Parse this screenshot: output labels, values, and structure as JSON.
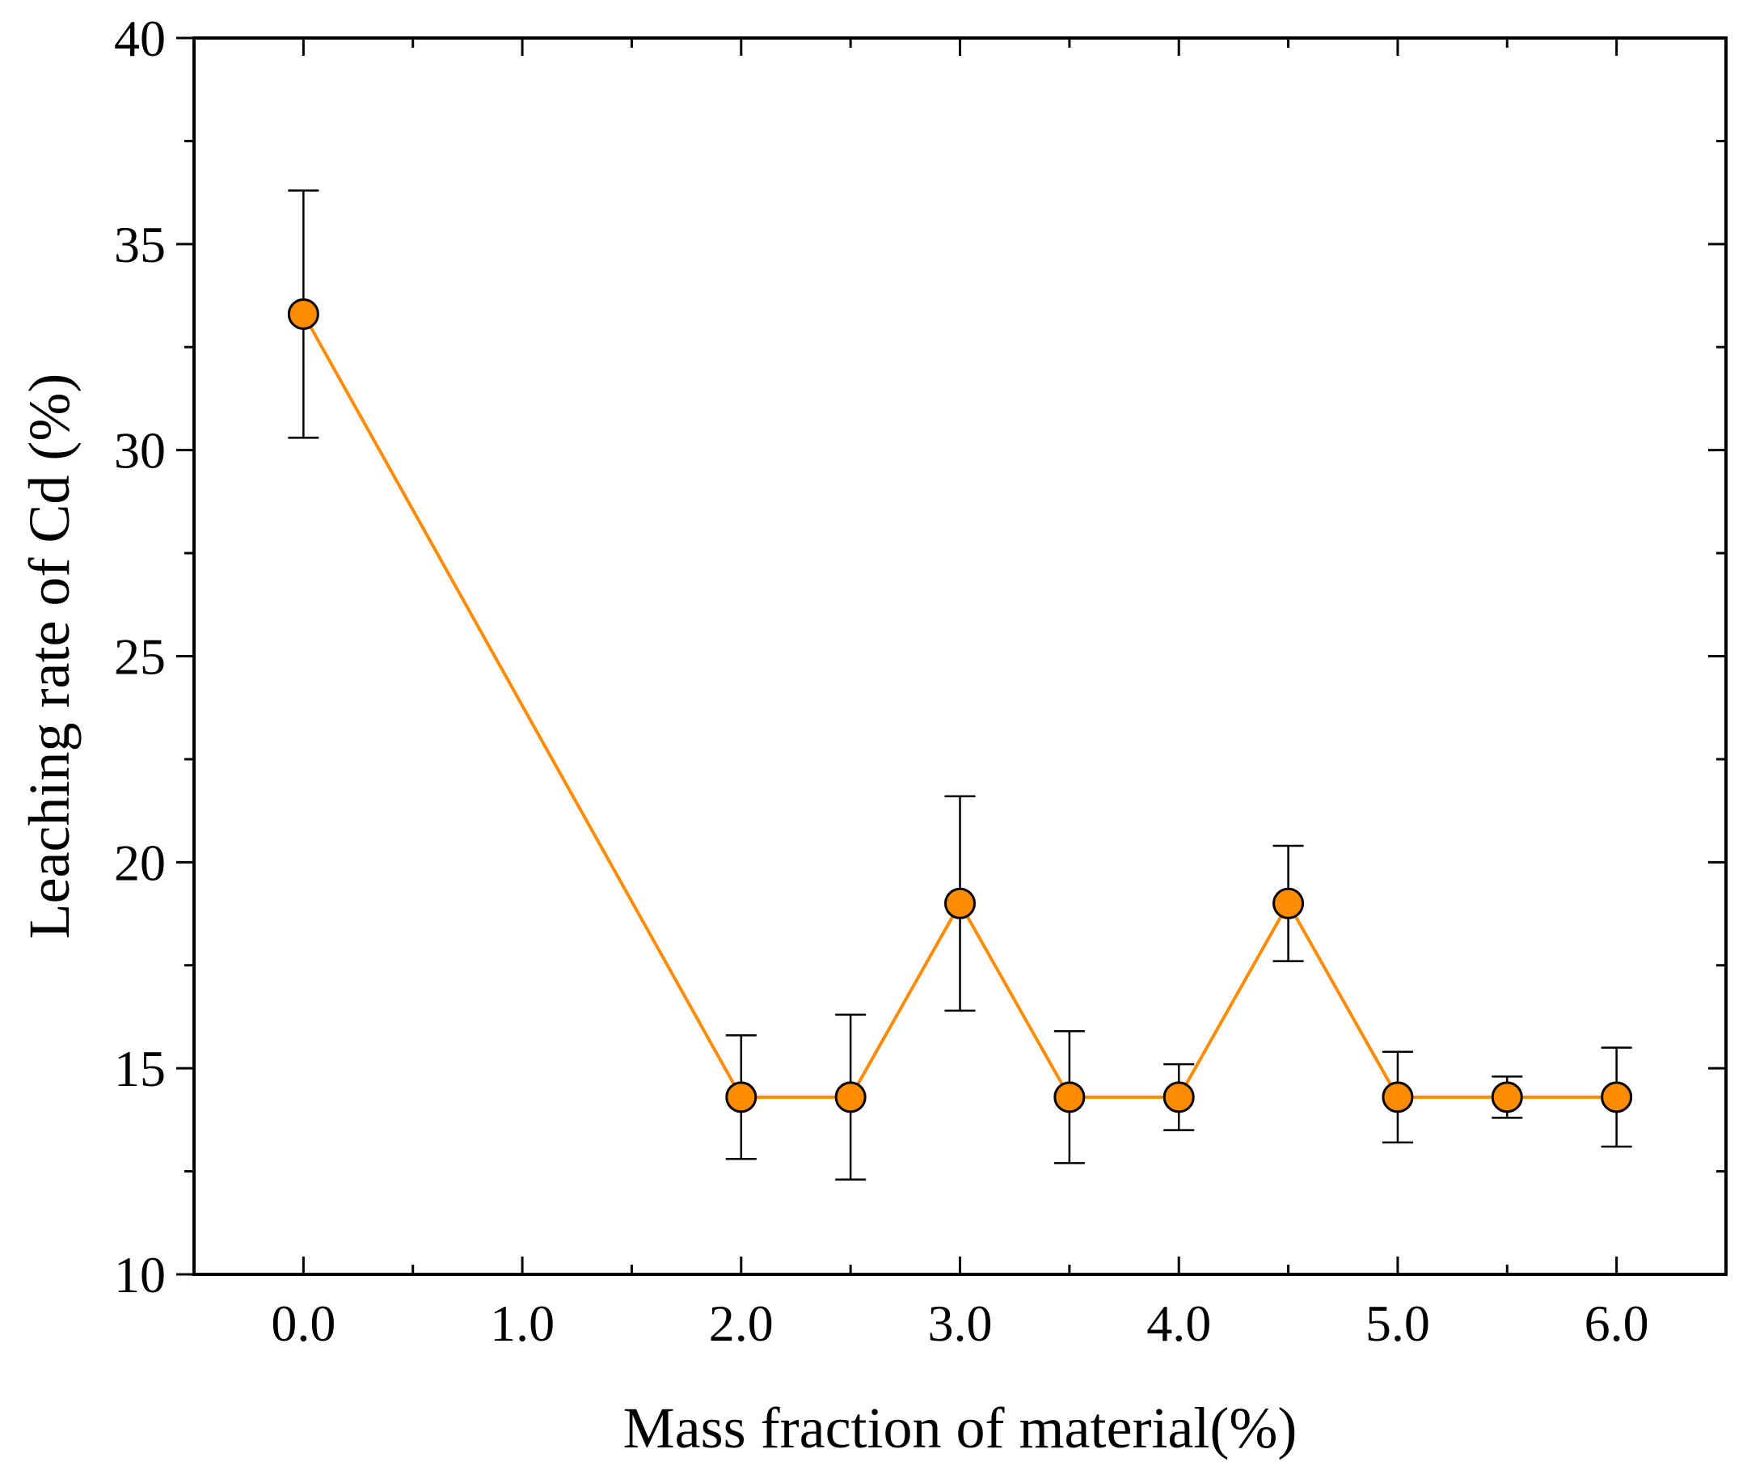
{
  "chart_data": {
    "type": "line",
    "xlabel": "Mass fraction of material(%)",
    "ylabel": "Leaching rate of Cd (%)",
    "xlim": [
      -0.5,
      6.5
    ],
    "ylim": [
      10,
      40
    ],
    "x_ticks": [
      0.0,
      1.0,
      2.0,
      3.0,
      4.0,
      5.0,
      6.0
    ],
    "x_tick_labels": [
      "0.0",
      "1.0",
      "2.0",
      "3.0",
      "4.0",
      "5.0",
      "6.0"
    ],
    "y_ticks": [
      10,
      15,
      20,
      25,
      30,
      35,
      40
    ],
    "y_tick_labels": [
      "10",
      "15",
      "20",
      "25",
      "30",
      "35",
      "40"
    ],
    "grid": false,
    "series": [
      {
        "color": "#FF8C00",
        "marker": "circle",
        "x": [
          0.0,
          2.0,
          2.5,
          3.0,
          3.5,
          4.0,
          4.5,
          5.0,
          5.5,
          6.0
        ],
        "y": [
          33.3,
          14.3,
          14.3,
          19.0,
          14.3,
          14.3,
          19.0,
          14.3,
          14.3,
          14.3
        ],
        "err_upper": [
          36.3,
          15.8,
          16.3,
          21.6,
          15.9,
          15.1,
          20.4,
          15.4,
          14.8,
          15.5
        ],
        "err_lower": [
          30.3,
          12.8,
          12.3,
          16.4,
          12.7,
          13.5,
          17.6,
          13.2,
          13.8,
          13.1
        ]
      }
    ]
  }
}
